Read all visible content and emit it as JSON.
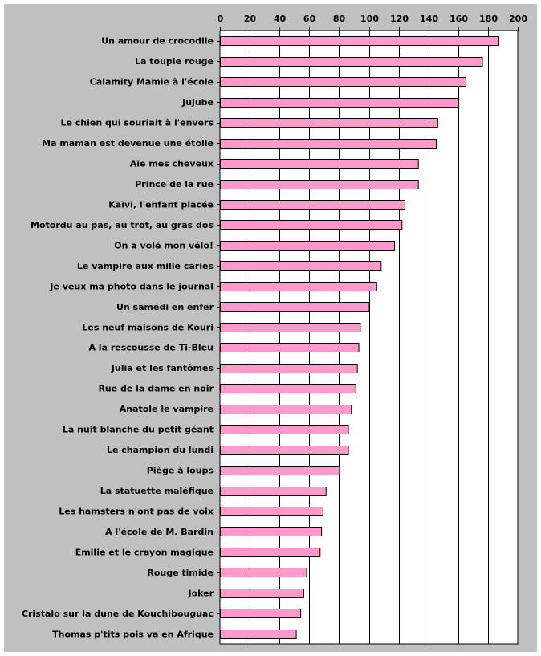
{
  "chart_data": {
    "type": "bar",
    "orientation": "horizontal",
    "title": "",
    "xlabel": "",
    "ylabel": "",
    "xlim": [
      0,
      200
    ],
    "x_ticks": [
      "0",
      "20",
      "40",
      "60",
      "80",
      "100",
      "120",
      "140",
      "160",
      "180",
      "200"
    ],
    "x_axis_position": "top",
    "grid": true,
    "legend": "none",
    "bar_color": "#ff99cc",
    "plot_background": "#ffffff",
    "frame_background": "#c0c0c0",
    "categories": [
      "Un amour de crocodile",
      "La toupie rouge",
      "Calamity Mamie à l'école",
      "Jujube",
      "Le chien qui souriait à l'envers",
      "Ma maman est devenue une étoile",
      "Aïe mes cheveux",
      "Prince de la rue",
      "Kaïvi, l'enfant placée",
      "Motordu au pas, au trot, au gras dos",
      "On a volé mon vélo!",
      "Le vampire aux mille caries",
      "Je veux ma photo dans le journal",
      "Un samedi en enfer",
      "Les neuf maisons de Kouri",
      "A la rescousse de Ti-Bleu",
      "Julia et les fantômes",
      "Rue de la dame en noir",
      "Anatole le vampire",
      "La nuit blanche du petit géant",
      "Le champion du lundi",
      "Piège à loups",
      "La statuette maléfique",
      "Les hamsters n'ont pas de voix",
      "A l'école de M. Bardin",
      "Emilie et le crayon magique",
      "Rouge timide",
      "Joker",
      "Cristalo sur la dune de Kouchibouguac",
      "Thomas p'tits pois va en Afrique"
    ],
    "values": [
      187,
      176,
      165,
      160,
      146,
      145,
      133,
      133,
      124,
      122,
      117,
      108,
      105,
      100,
      94,
      93,
      92,
      91,
      88,
      86,
      86,
      80,
      71,
      69,
      68,
      67,
      58,
      56,
      54,
      51
    ]
  }
}
